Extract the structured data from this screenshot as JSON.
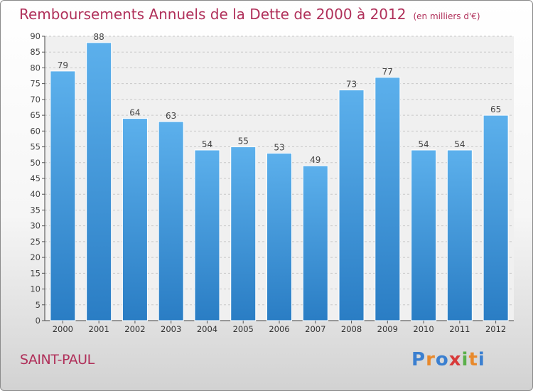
{
  "chart_data": {
    "type": "bar",
    "title": "Remboursements Annuels de la Dette de 2000 à 2012",
    "unit": "(en milliers d'€)",
    "categories": [
      "2000",
      "2001",
      "2002",
      "2003",
      "2004",
      "2005",
      "2006",
      "2007",
      "2008",
      "2009",
      "2010",
      "2011",
      "2012"
    ],
    "values": [
      79,
      88,
      64,
      63,
      54,
      55,
      53,
      49,
      73,
      77,
      54,
      54,
      65
    ],
    "ylim": [
      0,
      90
    ],
    "yticks": [
      0,
      5,
      10,
      15,
      20,
      25,
      30,
      35,
      40,
      45,
      50,
      55,
      60,
      65,
      70,
      75,
      80,
      85,
      90
    ],
    "grid": true,
    "bar_color": "#4a9ee0"
  },
  "commune": "SAINT-PAUL",
  "logo": {
    "letters": [
      "P",
      "r",
      "o",
      "x",
      "i",
      "t",
      "i"
    ],
    "colors": [
      "#3a7fd0",
      "#e8892b",
      "#3a7fd0",
      "#d83a3a",
      "#5ab04a",
      "#e8892b",
      "#3a7fd0"
    ]
  }
}
